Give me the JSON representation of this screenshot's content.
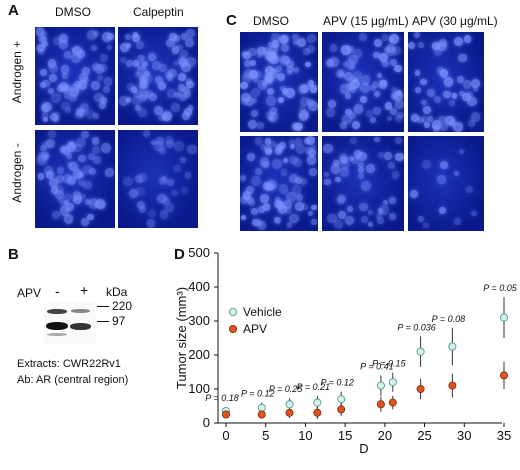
{
  "panel_a": {
    "label": "A",
    "columns": [
      "DMSO",
      "Calpeptin"
    ],
    "rows": [
      "Androgen +",
      "Androgen -"
    ]
  },
  "panel_b": {
    "label": "B",
    "apv_label": "APV",
    "lanes": [
      "-",
      "+"
    ],
    "kda_label": "kDa",
    "markers": [
      "220",
      "97"
    ],
    "extracts": "Extracts: CWR22Rv1",
    "antibody": "Ab: AR (central region)"
  },
  "panel_c": {
    "label": "C",
    "columns": [
      "DMSO",
      "APV (15 μg/mL)",
      "APV (30 μg/mL)"
    ]
  },
  "panel_d": {
    "label": "D"
  },
  "colors": {
    "microscopy_bg": "#0a1a8c",
    "nucleus": "#7d93ff",
    "vehicle_fill": "#d6f0ec",
    "apv_fill": "#e0531c"
  },
  "chart_data": {
    "type": "scatter",
    "xlabel": "D",
    "ylabel": "Tumor size (mm³)",
    "xlim": [
      0,
      35
    ],
    "ylim": [
      0,
      500
    ],
    "xticks": [
      0,
      5,
      10,
      15,
      20,
      25,
      30,
      35
    ],
    "yticks": [
      0,
      100,
      200,
      300,
      400,
      500
    ],
    "legend_position": "middle-left",
    "series": [
      {
        "name": "Vehicle",
        "x": [
          0,
          4.5,
          8,
          11.5,
          14.5,
          19.5,
          21,
          24.5,
          28.5,
          35
        ],
        "y": [
          35,
          45,
          55,
          60,
          70,
          110,
          120,
          210,
          225,
          310
        ],
        "err": [
          12,
          15,
          18,
          20,
          22,
          30,
          28,
          45,
          55,
          60
        ]
      },
      {
        "name": "APV",
        "x": [
          0,
          4.5,
          8,
          11.5,
          14.5,
          19.5,
          21,
          24.5,
          28.5,
          35
        ],
        "y": [
          25,
          25,
          30,
          30,
          40,
          55,
          60,
          100,
          110,
          140
        ],
        "err": [
          10,
          12,
          15,
          18,
          20,
          22,
          20,
          30,
          35,
          40
        ]
      }
    ],
    "annotations": [
      "P = 0.18",
      "P = 0.12",
      "P = 0.25",
      "P = 0.21",
      "P = 0.12",
      "P = 0.41",
      "P = 0.15",
      "P = 0.036",
      "P = 0.08",
      "P = 0.05"
    ]
  }
}
